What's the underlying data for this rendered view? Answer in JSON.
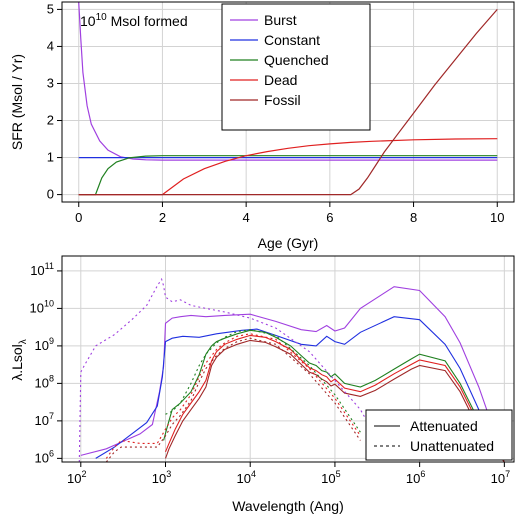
{
  "chart_data": [
    {
      "type": "line",
      "xlabel": "Age (Gyr)",
      "ylabel": "SFR (Msol / Yr)",
      "xlim": [
        -0.4,
        10.4
      ],
      "ylim": [
        -0.2,
        5.2
      ],
      "xticks": [
        "0",
        "2",
        "4",
        "6",
        "8",
        "10"
      ],
      "yticks": [
        "0",
        "1",
        "2",
        "3",
        "4",
        "5"
      ],
      "grid": true,
      "annotation": {
        "base": "10",
        "exp": "10",
        "rest": " Msol formed"
      },
      "legend": {
        "placement": "top-center"
      },
      "series": [
        {
          "name": "Burst",
          "color": "#a040e0",
          "x": [
            0,
            0.05,
            0.1,
            0.2,
            0.3,
            0.5,
            0.7,
            1.0,
            1.3,
            1.6,
            2,
            3,
            4,
            6,
            8,
            10
          ],
          "y": [
            5.2,
            4.2,
            3.3,
            2.4,
            1.9,
            1.45,
            1.2,
            1.02,
            0.96,
            0.94,
            0.93,
            0.93,
            0.93,
            0.93,
            0.93,
            0.93
          ]
        },
        {
          "name": "Constant",
          "color": "#2030e0",
          "x": [
            0,
            10
          ],
          "y": [
            1.0,
            1.0
          ]
        },
        {
          "name": "Quenched",
          "color": "#208020",
          "x": [
            0,
            0.4,
            0.55,
            0.7,
            0.9,
            1.2,
            1.6,
            2,
            3,
            4,
            6,
            8,
            10
          ],
          "y": [
            0,
            0,
            0.45,
            0.7,
            0.88,
            0.99,
            1.04,
            1.05,
            1.05,
            1.05,
            1.05,
            1.05,
            1.05
          ]
        },
        {
          "name": "Dead",
          "color": "#e02020",
          "x": [
            0,
            2,
            2.5,
            3,
            3.5,
            4,
            4.5,
            5,
            5.5,
            6,
            6.5,
            7,
            8,
            9,
            10
          ],
          "y": [
            0,
            0,
            0.42,
            0.7,
            0.9,
            1.05,
            1.16,
            1.25,
            1.32,
            1.37,
            1.41,
            1.44,
            1.48,
            1.5,
            1.51
          ]
        },
        {
          "name": "Fossil",
          "color": "#a02828",
          "x": [
            0,
            6.5,
            6.7,
            6.9,
            7.1,
            7.3,
            7.6,
            8,
            8.5,
            9,
            9.5,
            10
          ],
          "y": [
            0,
            0,
            0.15,
            0.45,
            0.8,
            1.15,
            1.6,
            2.2,
            2.95,
            3.65,
            4.35,
            5.0
          ]
        }
      ]
    },
    {
      "type": "line",
      "xlabel": "Wavelength (Ang)",
      "ylabel": "λ.Lsol_λ",
      "ylabel_main": "λ.Lsol",
      "ylabel_sub": "λ",
      "xscale": "log",
      "yscale": "log",
      "xlim": [
        60,
        13000000
      ],
      "ylim": [
        800000,
        250000000000
      ],
      "xticks": [
        {
          "base": "10",
          "exp": "2",
          "value": 100
        },
        {
          "base": "10",
          "exp": "3",
          "value": 1000
        },
        {
          "base": "10",
          "exp": "4",
          "value": 10000
        },
        {
          "base": "10",
          "exp": "5",
          "value": 100000
        },
        {
          "base": "10",
          "exp": "6",
          "value": 1000000
        },
        {
          "base": "10",
          "exp": "7",
          "value": 10000000
        }
      ],
      "yticks": [
        {
          "base": "10",
          "exp": "6",
          "value": 1000000
        },
        {
          "base": "10",
          "exp": "7",
          "value": 10000000
        },
        {
          "base": "10",
          "exp": "8",
          "value": 100000000
        },
        {
          "base": "10",
          "exp": "9",
          "value": 1000000000
        },
        {
          "base": "10",
          "exp": "10",
          "value": 10000000000
        },
        {
          "base": "10",
          "exp": "11",
          "value": 100000000000
        }
      ],
      "grid": true,
      "legend": {
        "placement": "bottom-right",
        "entries": [
          {
            "label": "Attenuated",
            "dash": "solid"
          },
          {
            "label": "Unattenuated",
            "dash": "dashed"
          }
        ]
      },
      "series": [
        {
          "label": "Burst",
          "dash": "solid",
          "color": "#a040e0",
          "x": [
            100,
            200,
            300,
            500,
            700,
            850,
            950,
            1000,
            1200,
            1500,
            2000,
            3000,
            5000,
            10000,
            20000,
            40000,
            60000,
            80000,
            100000,
            130000,
            200000,
            500000,
            1000000,
            2000000,
            3000000,
            5000000,
            10000000
          ],
          "y": [
            1200000,
            1800000,
            2700000,
            4500000,
            8000000,
            60000000,
            280000000,
            4000000000,
            5500000000,
            6000000000,
            6500000000,
            6000000000,
            6500000000,
            7000000000,
            4500000000,
            2700000000,
            2400000000,
            3500000000,
            2500000000,
            3000000000,
            10000000000,
            38000000000,
            30000000000,
            6000000000,
            1200000000,
            80000000,
            900000
          ]
        },
        {
          "label": "Constant",
          "dash": "solid",
          "color": "#2030e0",
          "x": [
            150,
            250,
            400,
            600,
            800,
            920,
            970,
            1000,
            1200,
            1600,
            2500,
            4000,
            8000,
            12000,
            20000,
            40000,
            60000,
            80000,
            100000,
            130000,
            200000,
            500000,
            1000000,
            2000000,
            3000000,
            5000000,
            10000000
          ],
          "y": [
            1000000,
            2000000,
            4500000,
            9000000,
            25000000,
            150000000,
            600000000,
            1300000000,
            1600000000,
            1800000000,
            1700000000,
            2100000000,
            2600000000,
            2800000000,
            1900000000,
            1100000000,
            1000000000,
            1800000000,
            1300000000,
            1100000000,
            2300000000,
            6000000000,
            5000000000,
            1100000000,
            250000000,
            20000000,
            900000
          ]
        },
        {
          "label": "Quenched",
          "dash": "solid",
          "color": "#208020",
          "x": [
            950,
            1050,
            1200,
            1500,
            2000,
            2500,
            3000,
            3500,
            4000,
            5000,
            7000,
            10000,
            15000,
            20000,
            30000,
            40000,
            50000,
            60000,
            70000,
            80000,
            90000,
            100000,
            130000,
            200000,
            300000,
            500000,
            800000,
            1000000,
            2000000,
            3000000,
            5000000,
            10000000
          ],
          "y": [
            3000000,
            7000000,
            20000000,
            30000000,
            60000000,
            170000000,
            600000000,
            1000000000,
            1300000000,
            1600000000,
            2100000000,
            2600000000,
            2300000000,
            1700000000,
            1000000000,
            550000000,
            350000000,
            300000000,
            220000000,
            200000000,
            150000000,
            180000000,
            100000000,
            80000000,
            120000000,
            240000000,
            450000000,
            600000000,
            400000000,
            100000000,
            10000000,
            900000
          ]
        },
        {
          "label": "Dead",
          "dash": "solid",
          "color": "#e02020",
          "x": [
            1000,
            1100,
            1300,
            1600,
            2000,
            2500,
            3000,
            3500,
            4000,
            5000,
            7000,
            10000,
            15000,
            20000,
            30000,
            40000,
            50000,
            60000,
            70000,
            80000,
            90000,
            100000,
            130000,
            200000,
            300000,
            500000,
            800000,
            1000000,
            2000000,
            3000000,
            5000000,
            10000000
          ],
          "y": [
            1500000,
            2500000,
            6000000,
            15000000,
            30000000,
            60000000,
            120000000,
            400000000,
            700000000,
            1100000000,
            1500000000,
            1900000000,
            1700000000,
            1300000000,
            800000000,
            420000000,
            260000000,
            220000000,
            170000000,
            150000000,
            110000000,
            130000000,
            75000000,
            60000000,
            90000000,
            180000000,
            320000000,
            420000000,
            300000000,
            80000000,
            8000000,
            800000
          ]
        },
        {
          "label": "Fossil",
          "dash": "solid",
          "color": "#a02828",
          "x": [
            1000,
            1100,
            1300,
            1600,
            2000,
            2500,
            3000,
            3500,
            4000,
            5000,
            7000,
            10000,
            15000,
            20000,
            30000,
            40000,
            50000,
            60000,
            70000,
            80000,
            90000,
            100000,
            130000,
            200000,
            300000,
            500000,
            800000,
            1000000,
            2000000,
            3000000,
            5000000,
            10000000
          ],
          "y": [
            1000000,
            1800000,
            4000000,
            10000000,
            20000000,
            40000000,
            80000000,
            300000000,
            500000000,
            800000000,
            1100000000,
            1400000000,
            1250000000,
            950000000,
            600000000,
            320000000,
            200000000,
            170000000,
            130000000,
            110000000,
            85000000,
            95000000,
            55000000,
            45000000,
            65000000,
            130000000,
            240000000,
            300000000,
            220000000,
            60000000,
            6000000,
            800000
          ]
        },
        {
          "label": "Burst",
          "dash": "dashed",
          "color": "#a040e0",
          "x": [
            96,
            100,
            110,
            150,
            250,
            400,
            600,
            800,
            900,
            950,
            1000,
            1200,
            1500,
            2000,
            3000,
            5000,
            10000,
            20000,
            50000,
            100000,
            200000,
            300000
          ],
          "y": [
            800000,
            200000000,
            300000000,
            1000000000,
            2000000000,
            5000000000,
            12000000000,
            40000000000,
            60000000000,
            40000000000,
            20000000000,
            15000000000,
            17000000000,
            12000000000,
            10000000000,
            8000000000,
            5500000000,
            3000000000,
            700000000,
            120000000,
            20000000,
            4000000
          ]
        },
        {
          "label": "Quenched",
          "dash": "dashed",
          "color": "#208020",
          "x": [
            1000,
            1200,
            1500,
            2000,
            2500,
            3000,
            4000,
            5000,
            7000,
            10000,
            20000,
            50000,
            100000,
            200000
          ],
          "y": [
            15000000,
            18000000,
            30000000,
            100000000,
            300000000,
            600000000,
            1200000000,
            1700000000,
            2400000000,
            2700000000,
            1900000000,
            300000000,
            50000000,
            5000000
          ]
        },
        {
          "label": "Dead",
          "dash": "dashed",
          "color": "#e02020",
          "x": [
            200,
            250,
            300,
            500,
            800,
            1000,
            1200,
            1500,
            2000,
            2500,
            3000,
            4000,
            5000,
            7000,
            10000,
            20000,
            50000,
            100000,
            200000
          ],
          "y": [
            1000000,
            2000000,
            3000000,
            2500000,
            2500000,
            6000000,
            12000000,
            20000000,
            50000000,
            150000000,
            350000000,
            800000000,
            1200000000,
            1800000000,
            2100000000,
            1500000000,
            250000000,
            40000000,
            4000000
          ]
        },
        {
          "label": "Fossil",
          "dash": "dashed",
          "color": "#a02828",
          "x": [
            200,
            250,
            300,
            500,
            800,
            1000,
            1200,
            1500,
            2000,
            2500,
            3000,
            4000,
            5000,
            7000,
            10000,
            20000,
            50000,
            100000,
            200000
          ],
          "y": [
            800000,
            1500000,
            2000000,
            2000000,
            2000000,
            4000000,
            8000000,
            14000000,
            35000000,
            110000000,
            250000000,
            550000000,
            850000000,
            1300000000,
            1600000000,
            1100000000,
            180000000,
            30000000,
            3000000
          ]
        }
      ]
    }
  ]
}
